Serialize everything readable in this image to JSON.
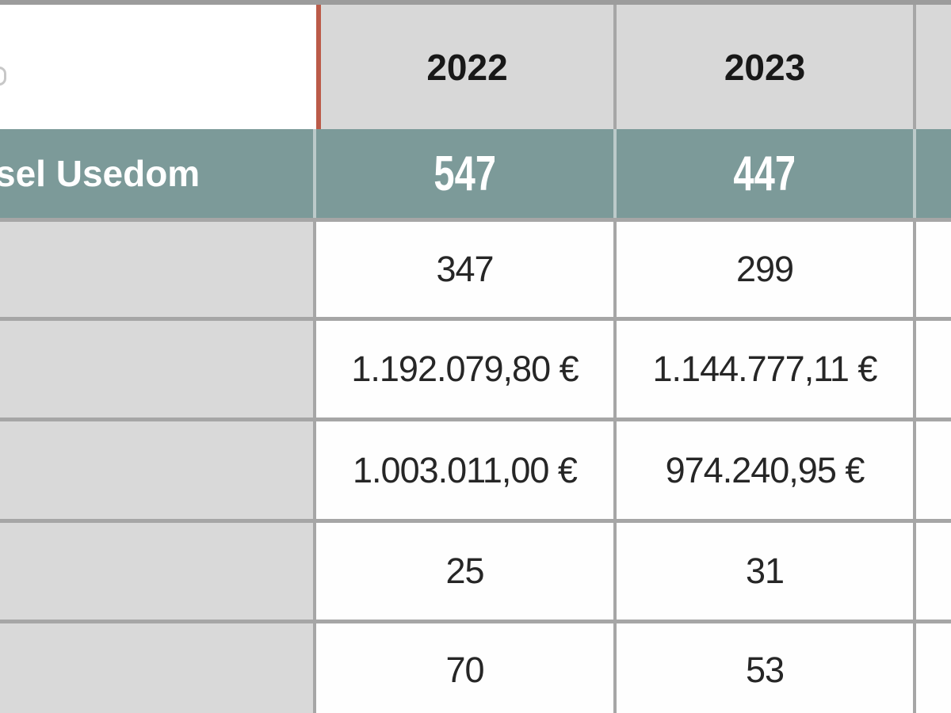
{
  "table": {
    "description_colors": {
      "accent_border_orange": "#bb5b49",
      "summary_row_teal": "#7c9a99",
      "header_cell_gray": "#d8d8d8",
      "label_column_gray": "#d9d9d9",
      "grid_border_gray": "#a6a6a6",
      "summary_text_white": "#ffffff"
    },
    "header": {
      "years": [
        "2022",
        "2023"
      ]
    },
    "summary_row": {
      "visible_label": "sel Usedom",
      "values": [
        "547",
        "447"
      ]
    },
    "rows": [
      {
        "values": [
          "347",
          "299"
        ]
      },
      {
        "values": [
          "1.192.079,80 €",
          "1.144.777,11 €"
        ]
      },
      {
        "values": [
          "1.003.011,00 €",
          "974.240,95 €"
        ]
      },
      {
        "values": [
          "25",
          "31"
        ]
      },
      {
        "values": [
          "70",
          "53"
        ]
      }
    ]
  }
}
